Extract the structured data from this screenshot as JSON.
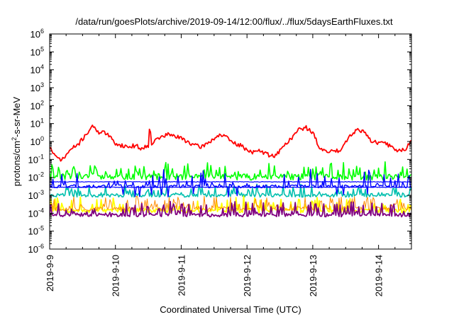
{
  "chart_data": {
    "type": "line",
    "title": "/data/run/goesPlots/archive/2019-09-14/12:00/flux/../flux/5daysEarthFluxes.txt",
    "xlabel": "Coordinated Universal Time (UTC)",
    "ylabel": {
      "pre": "protons/cm",
      "sup": "2",
      "post": "-s-sr-MeV"
    },
    "yscale": "log",
    "ylim_exp": [
      -6,
      6
    ],
    "xlim_days": [
      0,
      5.5
    ],
    "grid": false,
    "legend": "none",
    "x_tick_labels": [
      "2019-9-9",
      "2019-9-10",
      "2019-9-11",
      "2019-9-12",
      "2019-9-13",
      "2019-9-14"
    ],
    "x_ticks_days": [
      0,
      1,
      2,
      3,
      4,
      5
    ],
    "y_tick_exponents": [
      -6,
      -5,
      -4,
      -3,
      -2,
      -1,
      0,
      1,
      2,
      3,
      4,
      5,
      6
    ],
    "y_tick_base": "10",
    "series": [
      {
        "color": "#00ff00",
        "width": 1.6,
        "log_base": [
          -1.95,
          -2.0
        ],
        "noise": 0.35,
        "spike_prob": 0.28,
        "spike_amp": 0.75,
        "seed": 11,
        "x": [
          0,
          5.5
        ],
        "y_note": "~1e-2 with spikes to ~1e-1"
      },
      {
        "color": "#00bfae",
        "width": 1.6,
        "log_base": [
          -3.0,
          -3.0
        ],
        "noise": 0.2,
        "spike_prob": 0.3,
        "spike_amp": 0.55,
        "seed": 23,
        "x": [
          0,
          5.5
        ],
        "y_note": "~1e-3 with spikes to ~4e-3"
      },
      {
        "color": "#ffff00",
        "width": 1.8,
        "log_base": [
          -3.85,
          -3.85
        ],
        "noise": 0.25,
        "spike_prob": 0.3,
        "spike_amp": 0.7,
        "seed": 31,
        "x": [
          0,
          5.5
        ],
        "y_note": "~1.5e-4 with spikes to ~8e-4"
      },
      {
        "color": "#ff8c00",
        "width": 1.0,
        "log_base": [
          -3.75,
          -3.75
        ],
        "noise": 0.25,
        "spike_prob": 0.3,
        "spike_amp": 0.65,
        "seed": 37,
        "x": [
          0,
          5.5
        ],
        "y_note": "~2e-4"
      },
      {
        "color": "#800080",
        "width": 1.8,
        "log_base": [
          -4.1,
          -4.1
        ],
        "noise": 0.2,
        "spike_prob": 0.32,
        "spike_amp": 0.7,
        "seed": 41,
        "x": [
          0,
          5.5
        ],
        "y_note": "~8e-5 with spikes to ~5e-4"
      },
      {
        "color": "#0000ff",
        "width": 1.4,
        "log_base": [
          -2.5,
          -2.5
        ],
        "noise": 0.18,
        "spike_prob": 0.15,
        "spike_amp": 0.9,
        "seed": 53,
        "x": [
          0,
          5.5
        ],
        "y_note": "~3e-3 with spikes to ~1e-2, dips to ~8e-4"
      },
      {
        "color": "#0000ff",
        "width": 1.2,
        "log_base": [
          -2.25,
          -2.25
        ],
        "noise": 0.03,
        "spike_prob": 0.0,
        "spike_amp": 0.0,
        "seed": 61,
        "x": [
          0,
          5.5
        ],
        "y_note": "flat ~6e-3"
      },
      {
        "color": "#0000ff",
        "width": 1.2,
        "log_base": [
          -2.55,
          -2.55
        ],
        "noise": 0.03,
        "spike_prob": 0.0,
        "spike_amp": 0.0,
        "seed": 67,
        "x": [
          0,
          5.5
        ],
        "y_note": "flat ~3e-3"
      },
      {
        "color": "#ff0000",
        "width": 1.8,
        "noise": 0.12,
        "seed": 71,
        "x": [
          0.0,
          0.1,
          0.2,
          0.3,
          0.45,
          0.55,
          0.62,
          0.68,
          0.73,
          0.8,
          0.9,
          1.0,
          1.1,
          1.2,
          1.3,
          1.4,
          1.5,
          1.52,
          1.55,
          1.65,
          1.8,
          1.9,
          2.0,
          2.1,
          2.2,
          2.3,
          2.4,
          2.5,
          2.6,
          2.7,
          2.8,
          2.9,
          3.0,
          3.1,
          3.2,
          3.3,
          3.4,
          3.5,
          3.6,
          3.7,
          3.8,
          3.9,
          4.0,
          4.1,
          4.2,
          4.3,
          4.4,
          4.5,
          4.6,
          4.7,
          4.8,
          4.9,
          5.0,
          5.1,
          5.2,
          5.3,
          5.4,
          5.5
        ],
        "y": [
          0.5,
          0.12,
          0.1,
          0.3,
          0.8,
          2.5,
          5,
          8,
          3,
          4,
          2,
          0.8,
          0.6,
          0.5,
          0.6,
          0.4,
          0.6,
          10,
          0.8,
          1.5,
          2.5,
          2,
          1.5,
          1,
          0.6,
          0.5,
          0.8,
          1.5,
          2.5,
          1.5,
          0.8,
          0.6,
          0.35,
          0.25,
          0.3,
          0.2,
          0.15,
          0.3,
          0.8,
          2,
          5,
          6,
          3,
          0.5,
          0.25,
          0.3,
          0.3,
          1,
          3,
          5,
          3,
          1,
          0.8,
          0.8,
          0.5,
          0.3,
          0.35,
          1.2
        ]
      }
    ]
  }
}
